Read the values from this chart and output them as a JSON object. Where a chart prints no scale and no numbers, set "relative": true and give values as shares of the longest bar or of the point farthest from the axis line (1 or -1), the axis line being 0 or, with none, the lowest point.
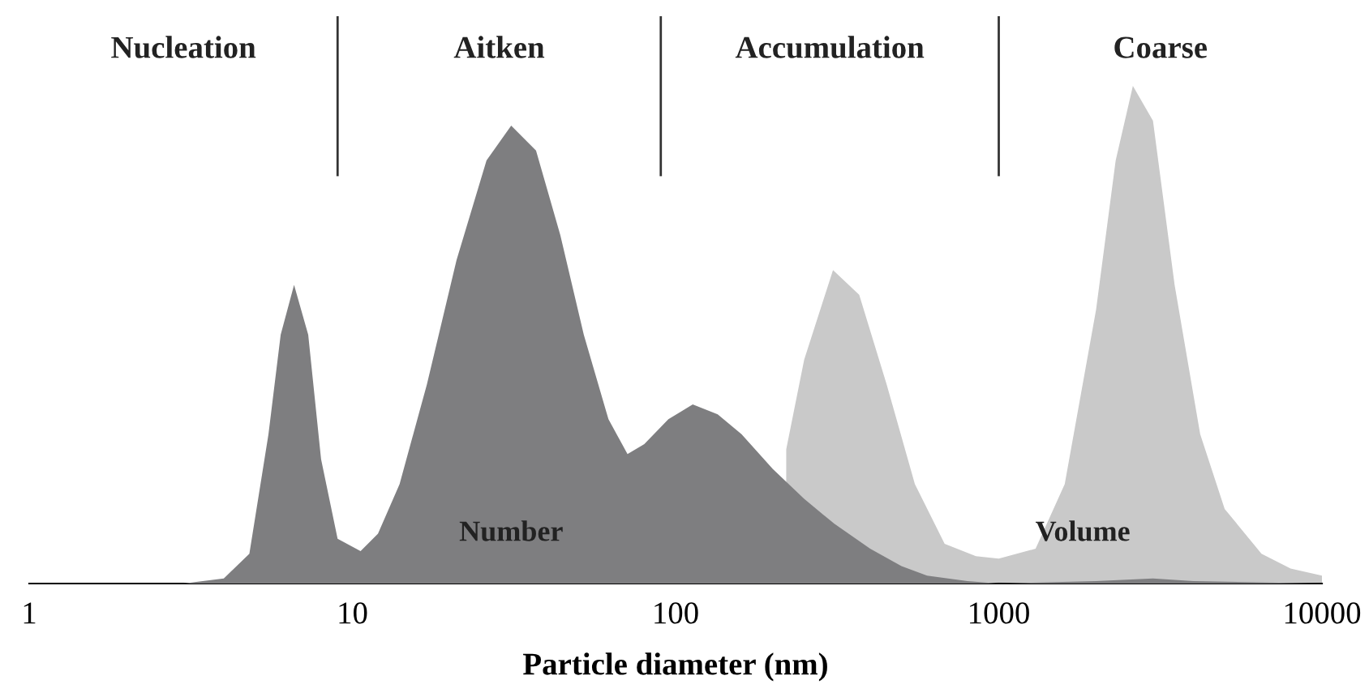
{
  "chart_data": {
    "type": "area",
    "relative": true,
    "log": "x",
    "xlabel": "Particle diameter (nm)",
    "xlim": [
      1,
      10000
    ],
    "xticks": [
      1,
      10,
      100,
      1000,
      10000
    ],
    "grid": false,
    "legend": false,
    "series": [
      {
        "name": "Volume",
        "color": "#c9c9c9",
        "x": [
          220,
          250,
          307,
          370,
          450,
          550,
          680,
          850,
          1000,
          1300,
          1600,
          2000,
          2300,
          2600,
          3000,
          3500,
          4200,
          5000,
          6500,
          8000,
          10000
        ],
        "values": [
          0.27,
          0.45,
          0.63,
          0.58,
          0.4,
          0.2,
          0.08,
          0.055,
          0.05,
          0.07,
          0.2,
          0.55,
          0.85,
          1.0,
          0.93,
          0.6,
          0.3,
          0.15,
          0.06,
          0.03,
          0.016
        ]
      },
      {
        "name": "Number",
        "color": "#7e7e80",
        "x": [
          1,
          3,
          4,
          4.8,
          5.5,
          6,
          6.6,
          7.3,
          8,
          9,
          10.6,
          12,
          14,
          17,
          21,
          26,
          31,
          37,
          44,
          52,
          62,
          71,
          80,
          95,
          113,
          135,
          160,
          200,
          250,
          310,
          400,
          500,
          600,
          800,
          1000,
          2000,
          3000,
          4000,
          10000
        ],
        "values": [
          0,
          0,
          0.01,
          0.06,
          0.3,
          0.5,
          0.6,
          0.5,
          0.25,
          0.09,
          0.065,
          0.1,
          0.2,
          0.4,
          0.65,
          0.85,
          0.92,
          0.87,
          0.7,
          0.5,
          0.33,
          0.26,
          0.28,
          0.33,
          0.36,
          0.34,
          0.3,
          0.23,
          0.17,
          0.12,
          0.07,
          0.035,
          0.016,
          0.005,
          0,
          0.005,
          0.01,
          0.005,
          0
        ]
      }
    ],
    "ref_lines": [
      {
        "axis": "x",
        "value": 9,
        "color": "#333333"
      },
      {
        "axis": "x",
        "value": 90,
        "color": "#333333"
      },
      {
        "axis": "x",
        "value": 1000,
        "color": "#333333"
      }
    ],
    "annotations": [
      "Nucleation",
      "Aitken",
      "Accumulation",
      "Coarse"
    ]
  }
}
